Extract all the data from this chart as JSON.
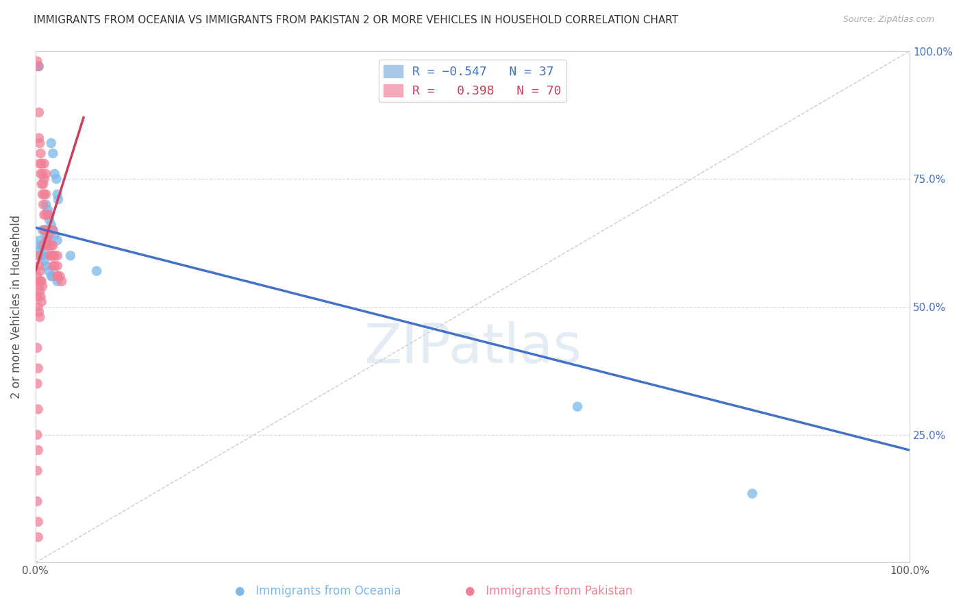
{
  "title": "IMMIGRANTS FROM OCEANIA VS IMMIGRANTS FROM PAKISTAN 2 OR MORE VEHICLES IN HOUSEHOLD CORRELATION CHART",
  "source": "Source: ZipAtlas.com",
  "ylabel": "2 or more Vehicles in Household",
  "xlim": [
    0.0,
    1.0
  ],
  "ylim": [
    0.0,
    1.0
  ],
  "oceania_color": "#7db8e8",
  "pakistan_color": "#f08098",
  "line_oceania_color": "#4472c4",
  "line_pakistan_color": "#c8405a",
  "background_color": "#ffffff",
  "grid_color": "#d8d8d8",
  "oceania_scatter": [
    [
      0.003,
      0.97
    ],
    [
      0.004,
      0.97
    ],
    [
      0.018,
      0.82
    ],
    [
      0.02,
      0.8
    ],
    [
      0.022,
      0.76
    ],
    [
      0.024,
      0.75
    ],
    [
      0.025,
      0.72
    ],
    [
      0.026,
      0.71
    ],
    [
      0.012,
      0.7
    ],
    [
      0.014,
      0.69
    ],
    [
      0.015,
      0.68
    ],
    [
      0.016,
      0.67
    ],
    [
      0.018,
      0.66
    ],
    [
      0.02,
      0.65
    ],
    [
      0.022,
      0.64
    ],
    [
      0.025,
      0.63
    ],
    [
      0.008,
      0.65
    ],
    [
      0.01,
      0.65
    ],
    [
      0.012,
      0.64
    ],
    [
      0.014,
      0.63
    ],
    [
      0.005,
      0.63
    ],
    [
      0.006,
      0.62
    ],
    [
      0.008,
      0.62
    ],
    [
      0.01,
      0.61
    ],
    [
      0.004,
      0.61
    ],
    [
      0.006,
      0.6
    ],
    [
      0.008,
      0.6
    ],
    [
      0.01,
      0.59
    ],
    [
      0.012,
      0.58
    ],
    [
      0.015,
      0.57
    ],
    [
      0.018,
      0.56
    ],
    [
      0.02,
      0.56
    ],
    [
      0.025,
      0.55
    ],
    [
      0.04,
      0.6
    ],
    [
      0.07,
      0.57
    ],
    [
      0.62,
      0.305
    ],
    [
      0.82,
      0.135
    ]
  ],
  "pakistan_scatter": [
    [
      0.002,
      0.98
    ],
    [
      0.003,
      0.97
    ],
    [
      0.004,
      0.88
    ],
    [
      0.004,
      0.83
    ],
    [
      0.005,
      0.82
    ],
    [
      0.005,
      0.78
    ],
    [
      0.006,
      0.8
    ],
    [
      0.006,
      0.76
    ],
    [
      0.007,
      0.78
    ],
    [
      0.007,
      0.74
    ],
    [
      0.008,
      0.76
    ],
    [
      0.008,
      0.72
    ],
    [
      0.009,
      0.74
    ],
    [
      0.009,
      0.7
    ],
    [
      0.01,
      0.78
    ],
    [
      0.01,
      0.75
    ],
    [
      0.01,
      0.72
    ],
    [
      0.01,
      0.68
    ],
    [
      0.01,
      0.65
    ],
    [
      0.01,
      0.62
    ],
    [
      0.012,
      0.76
    ],
    [
      0.012,
      0.72
    ],
    [
      0.012,
      0.68
    ],
    [
      0.012,
      0.65
    ],
    [
      0.013,
      0.63
    ],
    [
      0.014,
      0.62
    ],
    [
      0.015,
      0.68
    ],
    [
      0.015,
      0.64
    ],
    [
      0.016,
      0.62
    ],
    [
      0.017,
      0.6
    ],
    [
      0.018,
      0.62
    ],
    [
      0.018,
      0.6
    ],
    [
      0.02,
      0.65
    ],
    [
      0.02,
      0.62
    ],
    [
      0.02,
      0.6
    ],
    [
      0.02,
      0.58
    ],
    [
      0.022,
      0.6
    ],
    [
      0.022,
      0.58
    ],
    [
      0.025,
      0.6
    ],
    [
      0.025,
      0.58
    ],
    [
      0.025,
      0.56
    ],
    [
      0.028,
      0.56
    ],
    [
      0.003,
      0.6
    ],
    [
      0.004,
      0.58
    ],
    [
      0.005,
      0.57
    ],
    [
      0.006,
      0.55
    ],
    [
      0.007,
      0.55
    ],
    [
      0.008,
      0.54
    ],
    [
      0.002,
      0.56
    ],
    [
      0.003,
      0.55
    ],
    [
      0.004,
      0.54
    ],
    [
      0.005,
      0.53
    ],
    [
      0.006,
      0.52
    ],
    [
      0.007,
      0.51
    ],
    [
      0.002,
      0.52
    ],
    [
      0.003,
      0.5
    ],
    [
      0.004,
      0.49
    ],
    [
      0.005,
      0.48
    ],
    [
      0.002,
      0.42
    ],
    [
      0.003,
      0.38
    ],
    [
      0.002,
      0.35
    ],
    [
      0.003,
      0.3
    ],
    [
      0.002,
      0.25
    ],
    [
      0.003,
      0.22
    ],
    [
      0.002,
      0.18
    ],
    [
      0.002,
      0.12
    ],
    [
      0.003,
      0.08
    ],
    [
      0.003,
      0.05
    ],
    [
      0.025,
      0.56
    ],
    [
      0.03,
      0.55
    ]
  ],
  "oceania_line_x": [
    0.0,
    1.0
  ],
  "oceania_line_y": [
    0.655,
    0.22
  ],
  "pakistan_line_x": [
    0.0,
    0.055
  ],
  "pakistan_line_y": [
    0.57,
    0.87
  ]
}
